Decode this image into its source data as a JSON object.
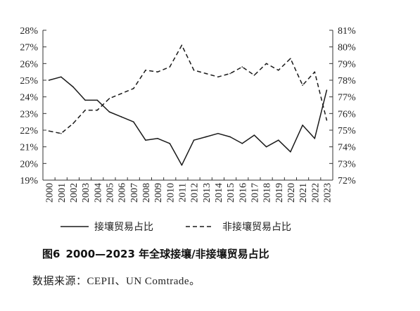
{
  "chart_data": {
    "type": "line",
    "title": "",
    "categories": [
      "2000",
      "2001",
      "2002",
      "2003",
      "2004",
      "2005",
      "2006",
      "2007",
      "2008",
      "2009",
      "2010",
      "2011",
      "2012",
      "2013",
      "2014",
      "2015",
      "2016",
      "2017",
      "2018",
      "2019",
      "2020",
      "2021",
      "2022",
      "2023"
    ],
    "left_axis": {
      "ylim": [
        19,
        28
      ],
      "ticks": [
        19,
        20,
        21,
        22,
        23,
        24,
        25,
        26,
        27,
        28
      ],
      "tick_labels": [
        "19%",
        "20%",
        "21%",
        "22%",
        "23%",
        "24%",
        "25%",
        "26%",
        "27%",
        "28%"
      ]
    },
    "right_axis": {
      "ylim": [
        72,
        81
      ],
      "ticks": [
        72,
        73,
        74,
        75,
        76,
        77,
        78,
        79,
        80,
        81
      ],
      "tick_labels": [
        "72%",
        "73%",
        "74%",
        "75%",
        "76%",
        "77%",
        "78%",
        "79%",
        "80%",
        "81%"
      ]
    },
    "series": [
      {
        "name": "接壤贸易占比",
        "axis": "left",
        "style": "solid",
        "values": [
          25.0,
          25.2,
          24.6,
          23.8,
          23.8,
          23.1,
          22.8,
          22.5,
          21.4,
          21.5,
          21.2,
          19.9,
          21.4,
          21.6,
          21.8,
          21.6,
          21.2,
          21.7,
          21.0,
          21.4,
          20.7,
          22.3,
          21.5,
          24.4
        ]
      },
      {
        "name": "非接壤贸易占比",
        "axis": "right",
        "style": "dashed",
        "values": [
          74.95,
          74.8,
          75.4,
          76.2,
          76.2,
          76.9,
          77.2,
          77.5,
          78.6,
          78.5,
          78.8,
          80.1,
          78.6,
          78.4,
          78.2,
          78.4,
          78.8,
          78.3,
          79.0,
          78.6,
          79.3,
          77.7,
          78.5,
          75.6
        ]
      }
    ],
    "grid": false,
    "legend_position": "bottom"
  },
  "caption": {
    "figure_number": "图6",
    "text": "2000—2023 年全球接壤/非接壤贸易占比"
  },
  "source_note": "数据来源：CEPII、UN Comtrade。",
  "colors": {
    "line": "#1a1a1a",
    "axis": "#333333"
  }
}
